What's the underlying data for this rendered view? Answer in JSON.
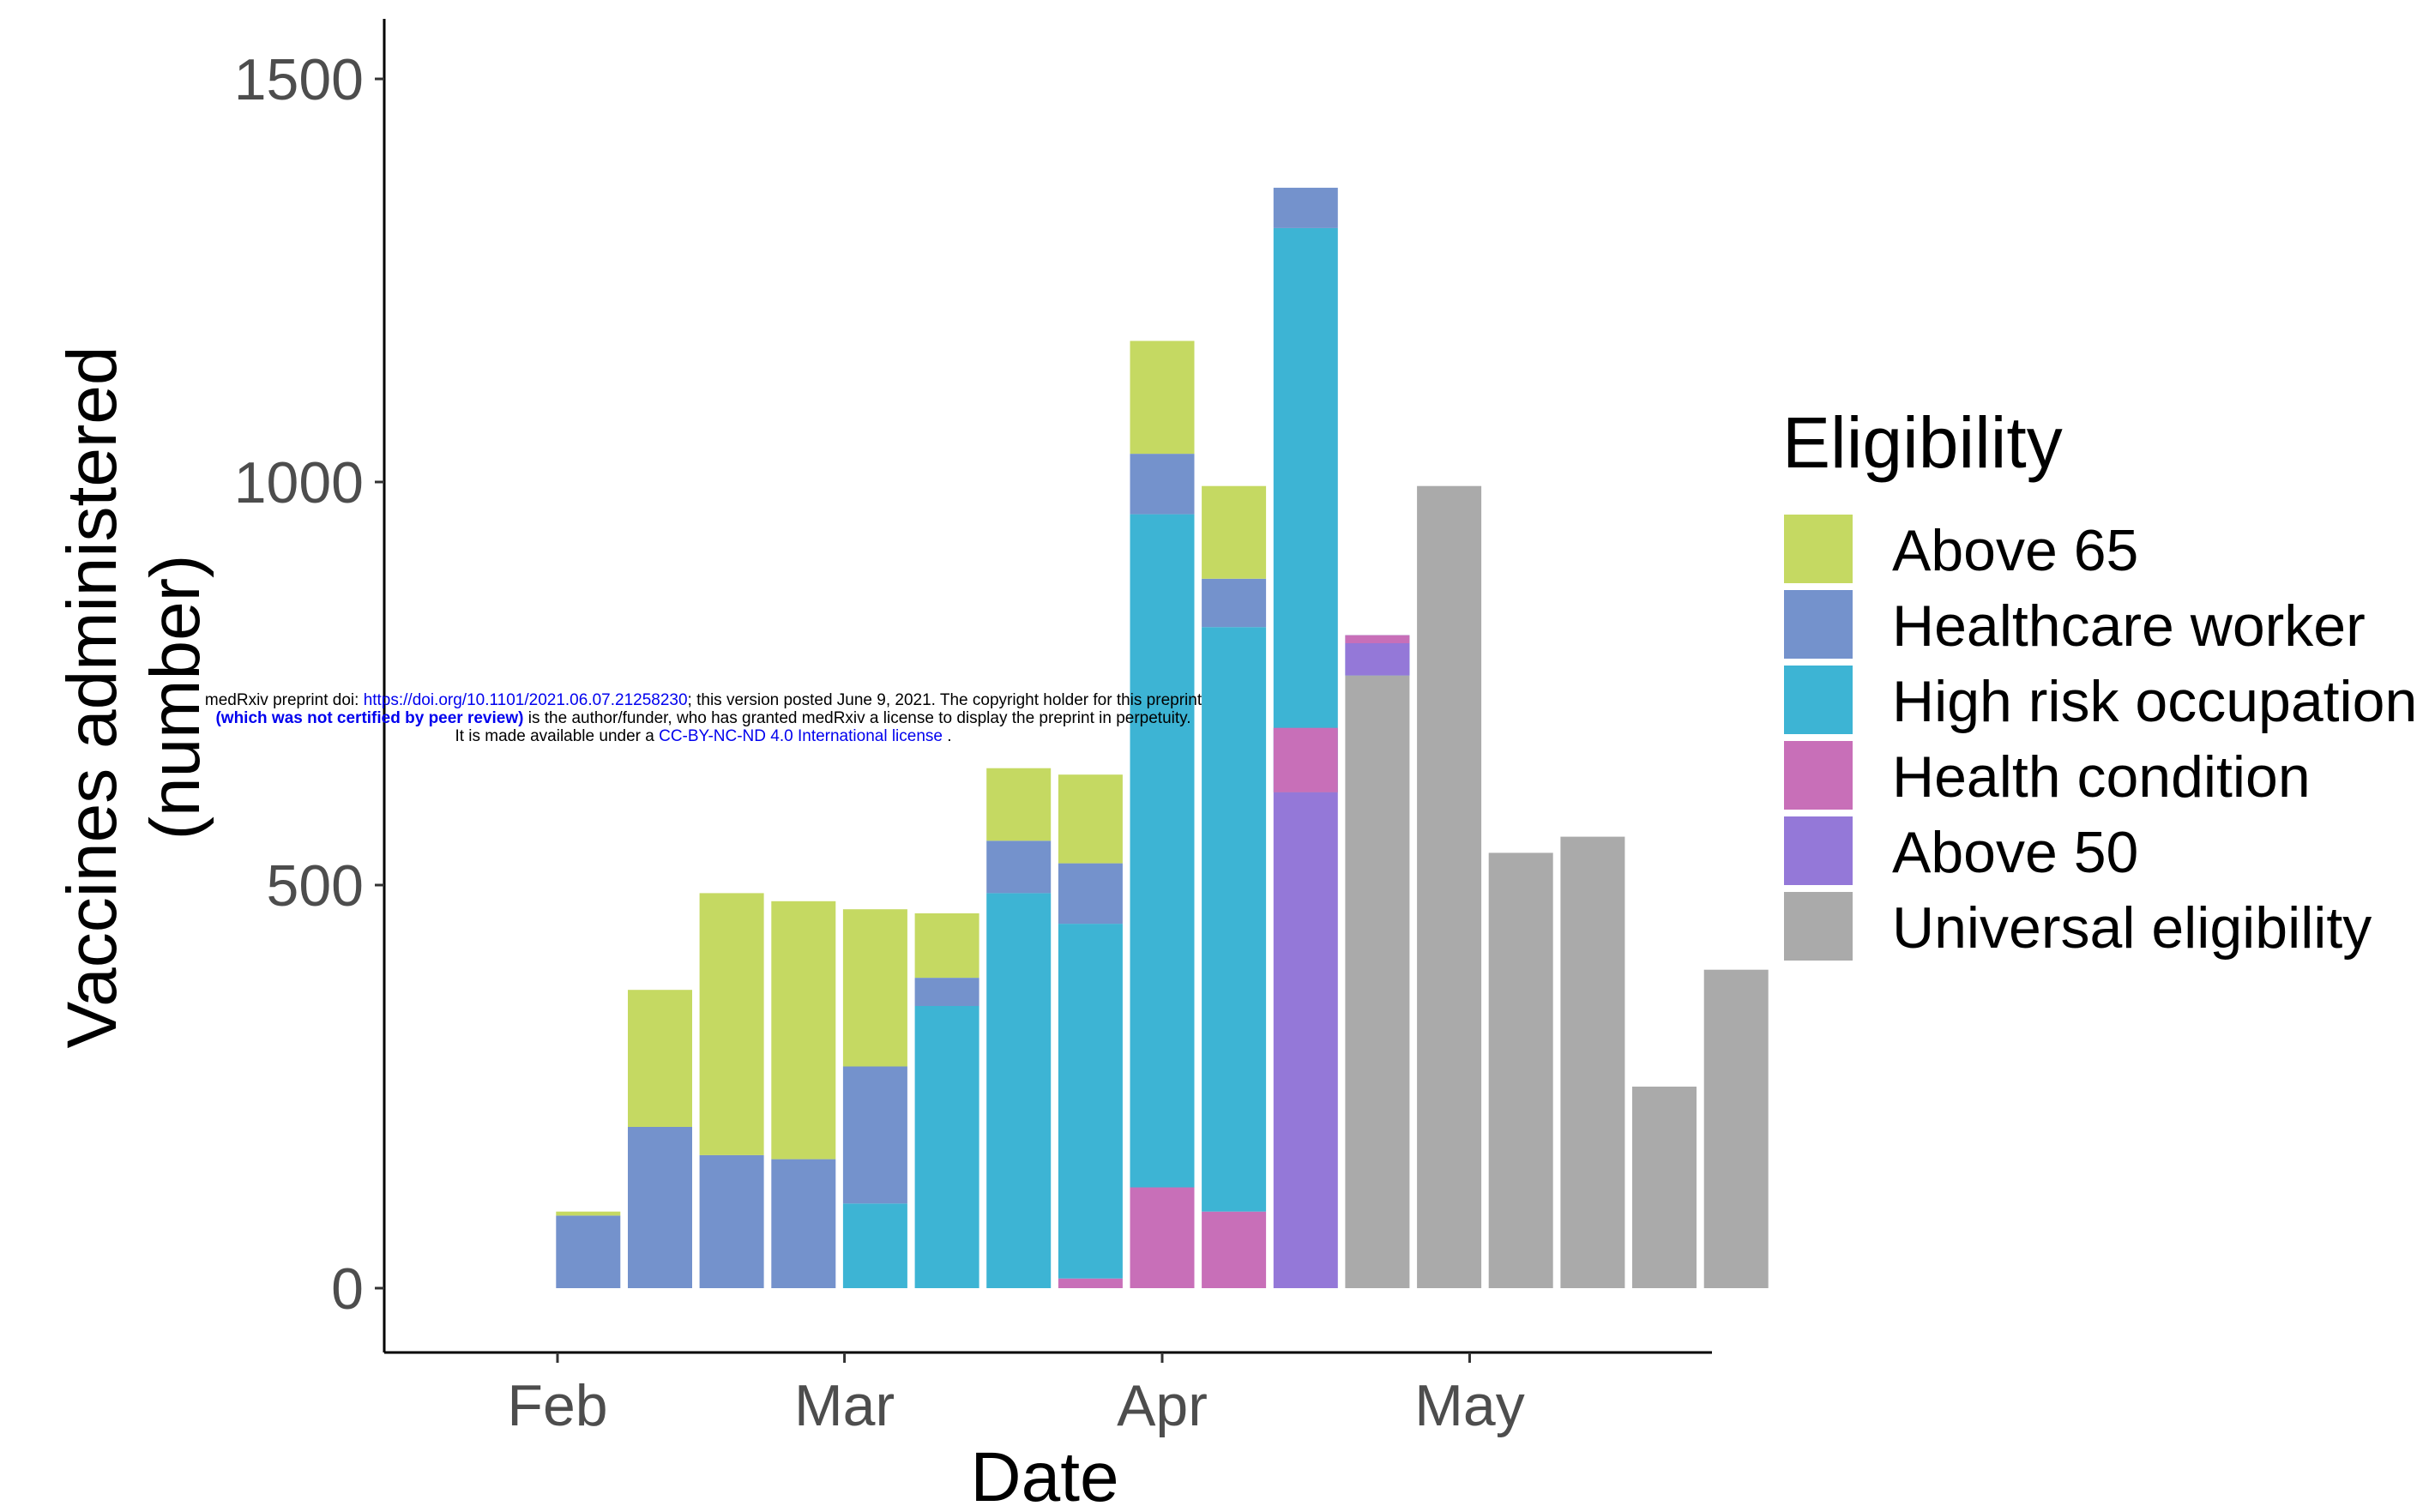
{
  "chart_data": {
    "type": "bar",
    "stacked": true,
    "xlabel": "Date",
    "ylabel": "Vaccines administered\n(number)",
    "ylim": [
      0,
      1580
    ],
    "yticks": [
      0,
      500,
      1000,
      1500
    ],
    "xticks": [
      "Feb",
      "Mar",
      "Apr",
      "May"
    ],
    "legend": {
      "title": "Eligibility",
      "placement": "right"
    },
    "grid": false,
    "series": [
      {
        "name": "Health condition",
        "color": "#c86fb8",
        "values": [
          0,
          0,
          0,
          0,
          0,
          0,
          0,
          12,
          125,
          95,
          0,
          0,
          0,
          0,
          0,
          0,
          0
        ]
      },
      {
        "name": "Above 50",
        "color": "#9478d8",
        "values": [
          0,
          0,
          0,
          0,
          0,
          0,
          0,
          0,
          0,
          0,
          615,
          0,
          0,
          0,
          0,
          0,
          0
        ]
      },
      {
        "name": "Universal eligibility",
        "color": "#aaaaaa",
        "values": [
          0,
          0,
          0,
          0,
          0,
          0,
          0,
          0,
          0,
          0,
          0,
          760,
          995,
          540,
          560,
          250,
          395
        ]
      },
      {
        "name": "High risk occupation",
        "color": "#3db4d4",
        "values": [
          0,
          0,
          0,
          0,
          105,
          350,
          490,
          440,
          835,
          725,
          700,
          50,
          0,
          0,
          0,
          0,
          0
        ]
      },
      {
        "name": "Healthcare worker",
        "color": "#7492cc",
        "values": [
          90,
          200,
          165,
          160,
          170,
          35,
          65,
          75,
          75,
          60,
          50,
          0,
          0,
          0,
          0,
          0,
          0
        ]
      },
      {
        "name": "Above 65",
        "color": "#c5d962",
        "values": [
          5,
          170,
          325,
          320,
          195,
          80,
          90,
          110,
          140,
          115,
          0,
          0,
          0,
          0,
          0,
          0,
          0
        ]
      }
    ],
    "overlay_segments": [
      {
        "series": "Health condition",
        "bar": 10,
        "base": 615,
        "value": 80
      },
      {
        "series": "Above 50",
        "bar": 11,
        "base": 760,
        "value": 40
      },
      {
        "series": "Health condition",
        "bar": 11,
        "base": 800,
        "value": 10
      }
    ],
    "bar_positions_days": [
      3,
      10,
      17,
      24,
      31,
      38,
      45,
      52,
      59,
      66,
      73,
      80,
      87,
      94,
      101,
      108,
      115
    ],
    "xtick_days": [
      0,
      28,
      59,
      89
    ]
  },
  "legend_order": [
    "Above 65",
    "Healthcare worker",
    "High risk occupation",
    "Health condition",
    "Above 50",
    "Universal eligibility"
  ],
  "notice": {
    "line1_a": "medRxiv preprint doi: ",
    "line1_link": "https://doi.org/10.1101/2021.06.07.21258230",
    "line1_b": "; this version posted June 9, 2021. The copyright holder for this preprint",
    "line2_bold": "(which was not certified by peer review)",
    "line2_b": " is the author/funder, who has granted medRxiv a license to display the preprint in perpetuity.",
    "line3_a": "It is made available under a ",
    "line3_link": "CC-BY-NC-ND 4.0 International license",
    "line3_b": " ."
  }
}
